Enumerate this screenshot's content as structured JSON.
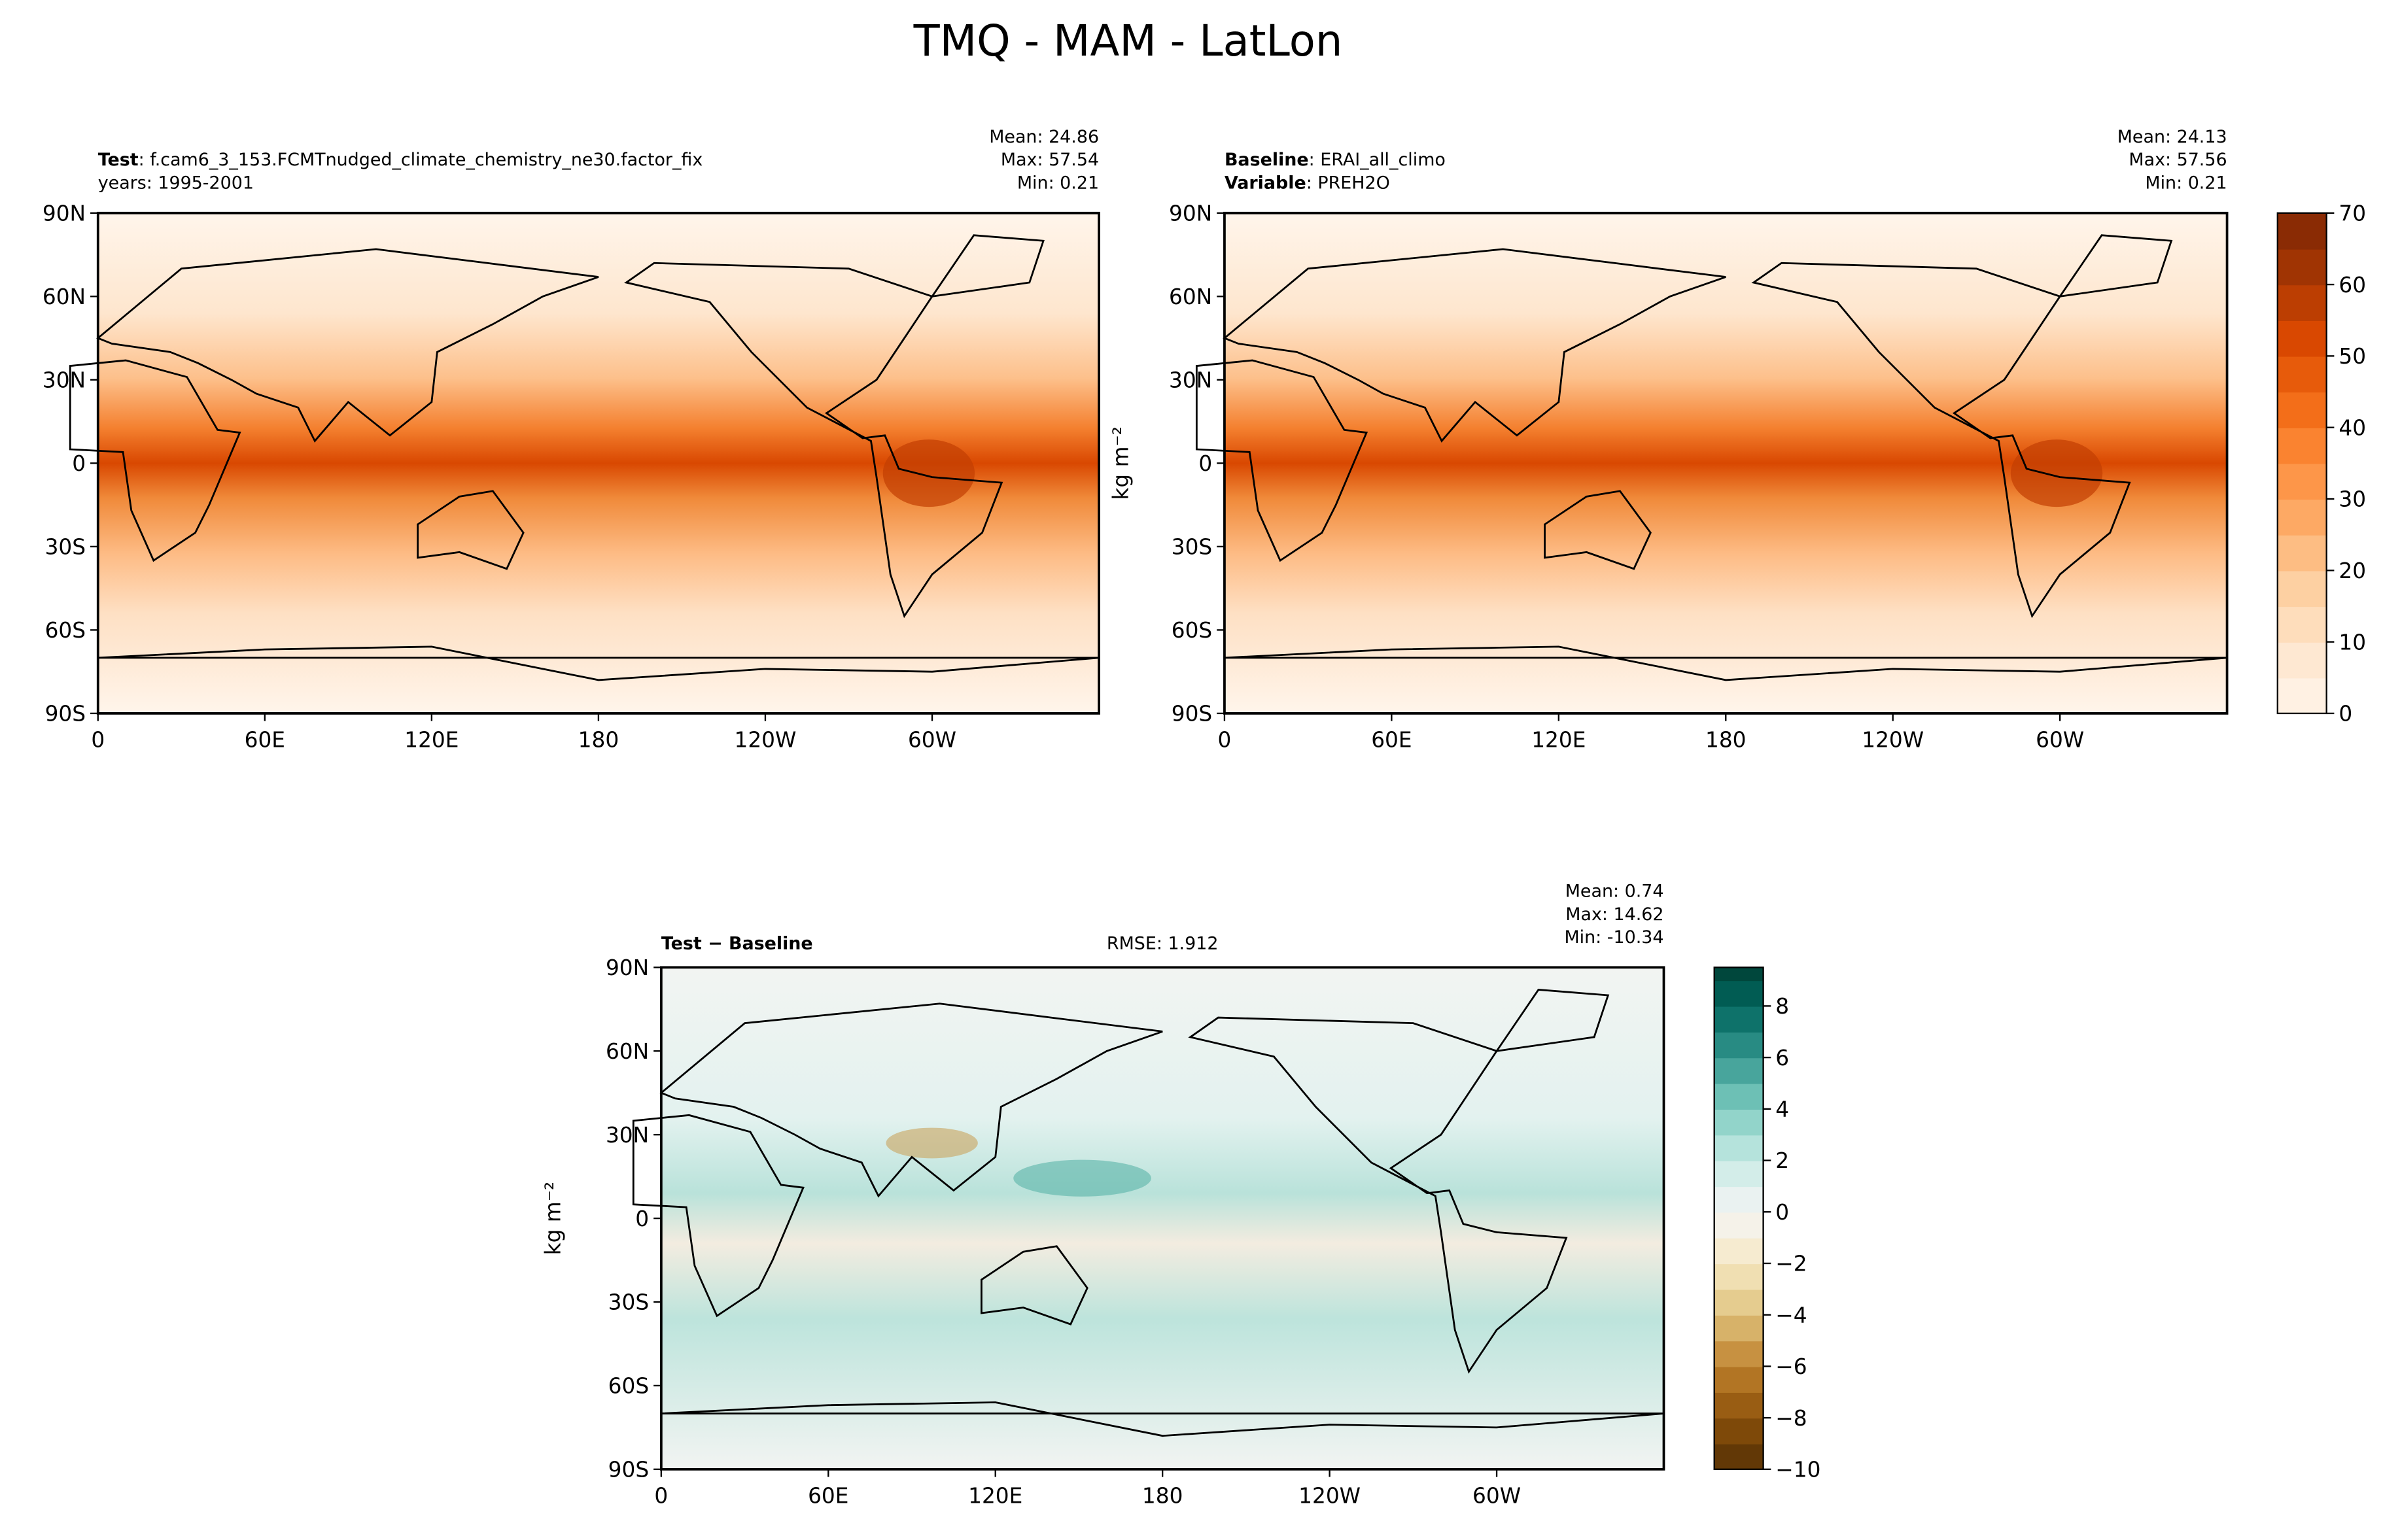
{
  "chart_data": {
    "type": "heatmap",
    "title": "TMQ - MAM - LatLon",
    "lat_ticks": [
      "90N",
      "60N",
      "30N",
      "0",
      "30S",
      "60S",
      "90S"
    ],
    "lon_ticks": [
      "0",
      "60E",
      "120E",
      "180",
      "120W",
      "60W"
    ],
    "lat_values": [
      90,
      60,
      30,
      0,
      -30,
      -60,
      -90
    ],
    "lon_values": [
      0,
      60,
      120,
      180,
      240,
      300
    ],
    "panels": [
      {
        "id": "test",
        "label_bold": "Test",
        "label_text": ": f.cam6_3_153.FCMTnudged_climate_chemistry_ne30.factor_fix",
        "label_line2": "years: 1995-2001",
        "stats": [
          "Mean: 24.86",
          "Max: 57.54",
          "Min:  0.21"
        ],
        "mean": 24.86,
        "max": 57.54,
        "min": 0.21
      },
      {
        "id": "baseline",
        "label_bold": "Baseline",
        "label_text": ": ERAI_all_climo",
        "label_bold2": "Variable",
        "label_text2": ": PREH2O",
        "stats": [
          "Mean: 24.13",
          "Max: 57.56",
          "Min:  0.21"
        ],
        "mean": 24.13,
        "max": 57.56,
        "min": 0.21
      },
      {
        "id": "diff",
        "label_bold": "Test − Baseline",
        "rmse": "RMSE: 1.912",
        "stats": [
          "Mean:  0.74",
          "Max: 14.62",
          "Min: -10.34"
        ],
        "mean": 0.74,
        "max": 14.62,
        "min": -10.34
      }
    ],
    "colorbars": [
      {
        "label": "kg m⁻²",
        "range": [
          0,
          70
        ],
        "step": 5,
        "ticks": [
          "0",
          "10",
          "20",
          "30",
          "40",
          "50",
          "60",
          "70"
        ],
        "tick_values": [
          0,
          10,
          20,
          30,
          40,
          50,
          60,
          70
        ],
        "colormap": "Oranges"
      },
      {
        "label": "kg m⁻²",
        "range": [
          -10,
          9.5
        ],
        "step": 1,
        "ticks": [
          "−10",
          "−8",
          "−6",
          "−4",
          "−2",
          "0",
          "2",
          "4",
          "6",
          "8"
        ],
        "tick_values": [
          -10,
          -8,
          -6,
          -4,
          -2,
          0,
          2,
          4,
          6,
          8
        ],
        "colormap": "BrBG"
      }
    ]
  }
}
